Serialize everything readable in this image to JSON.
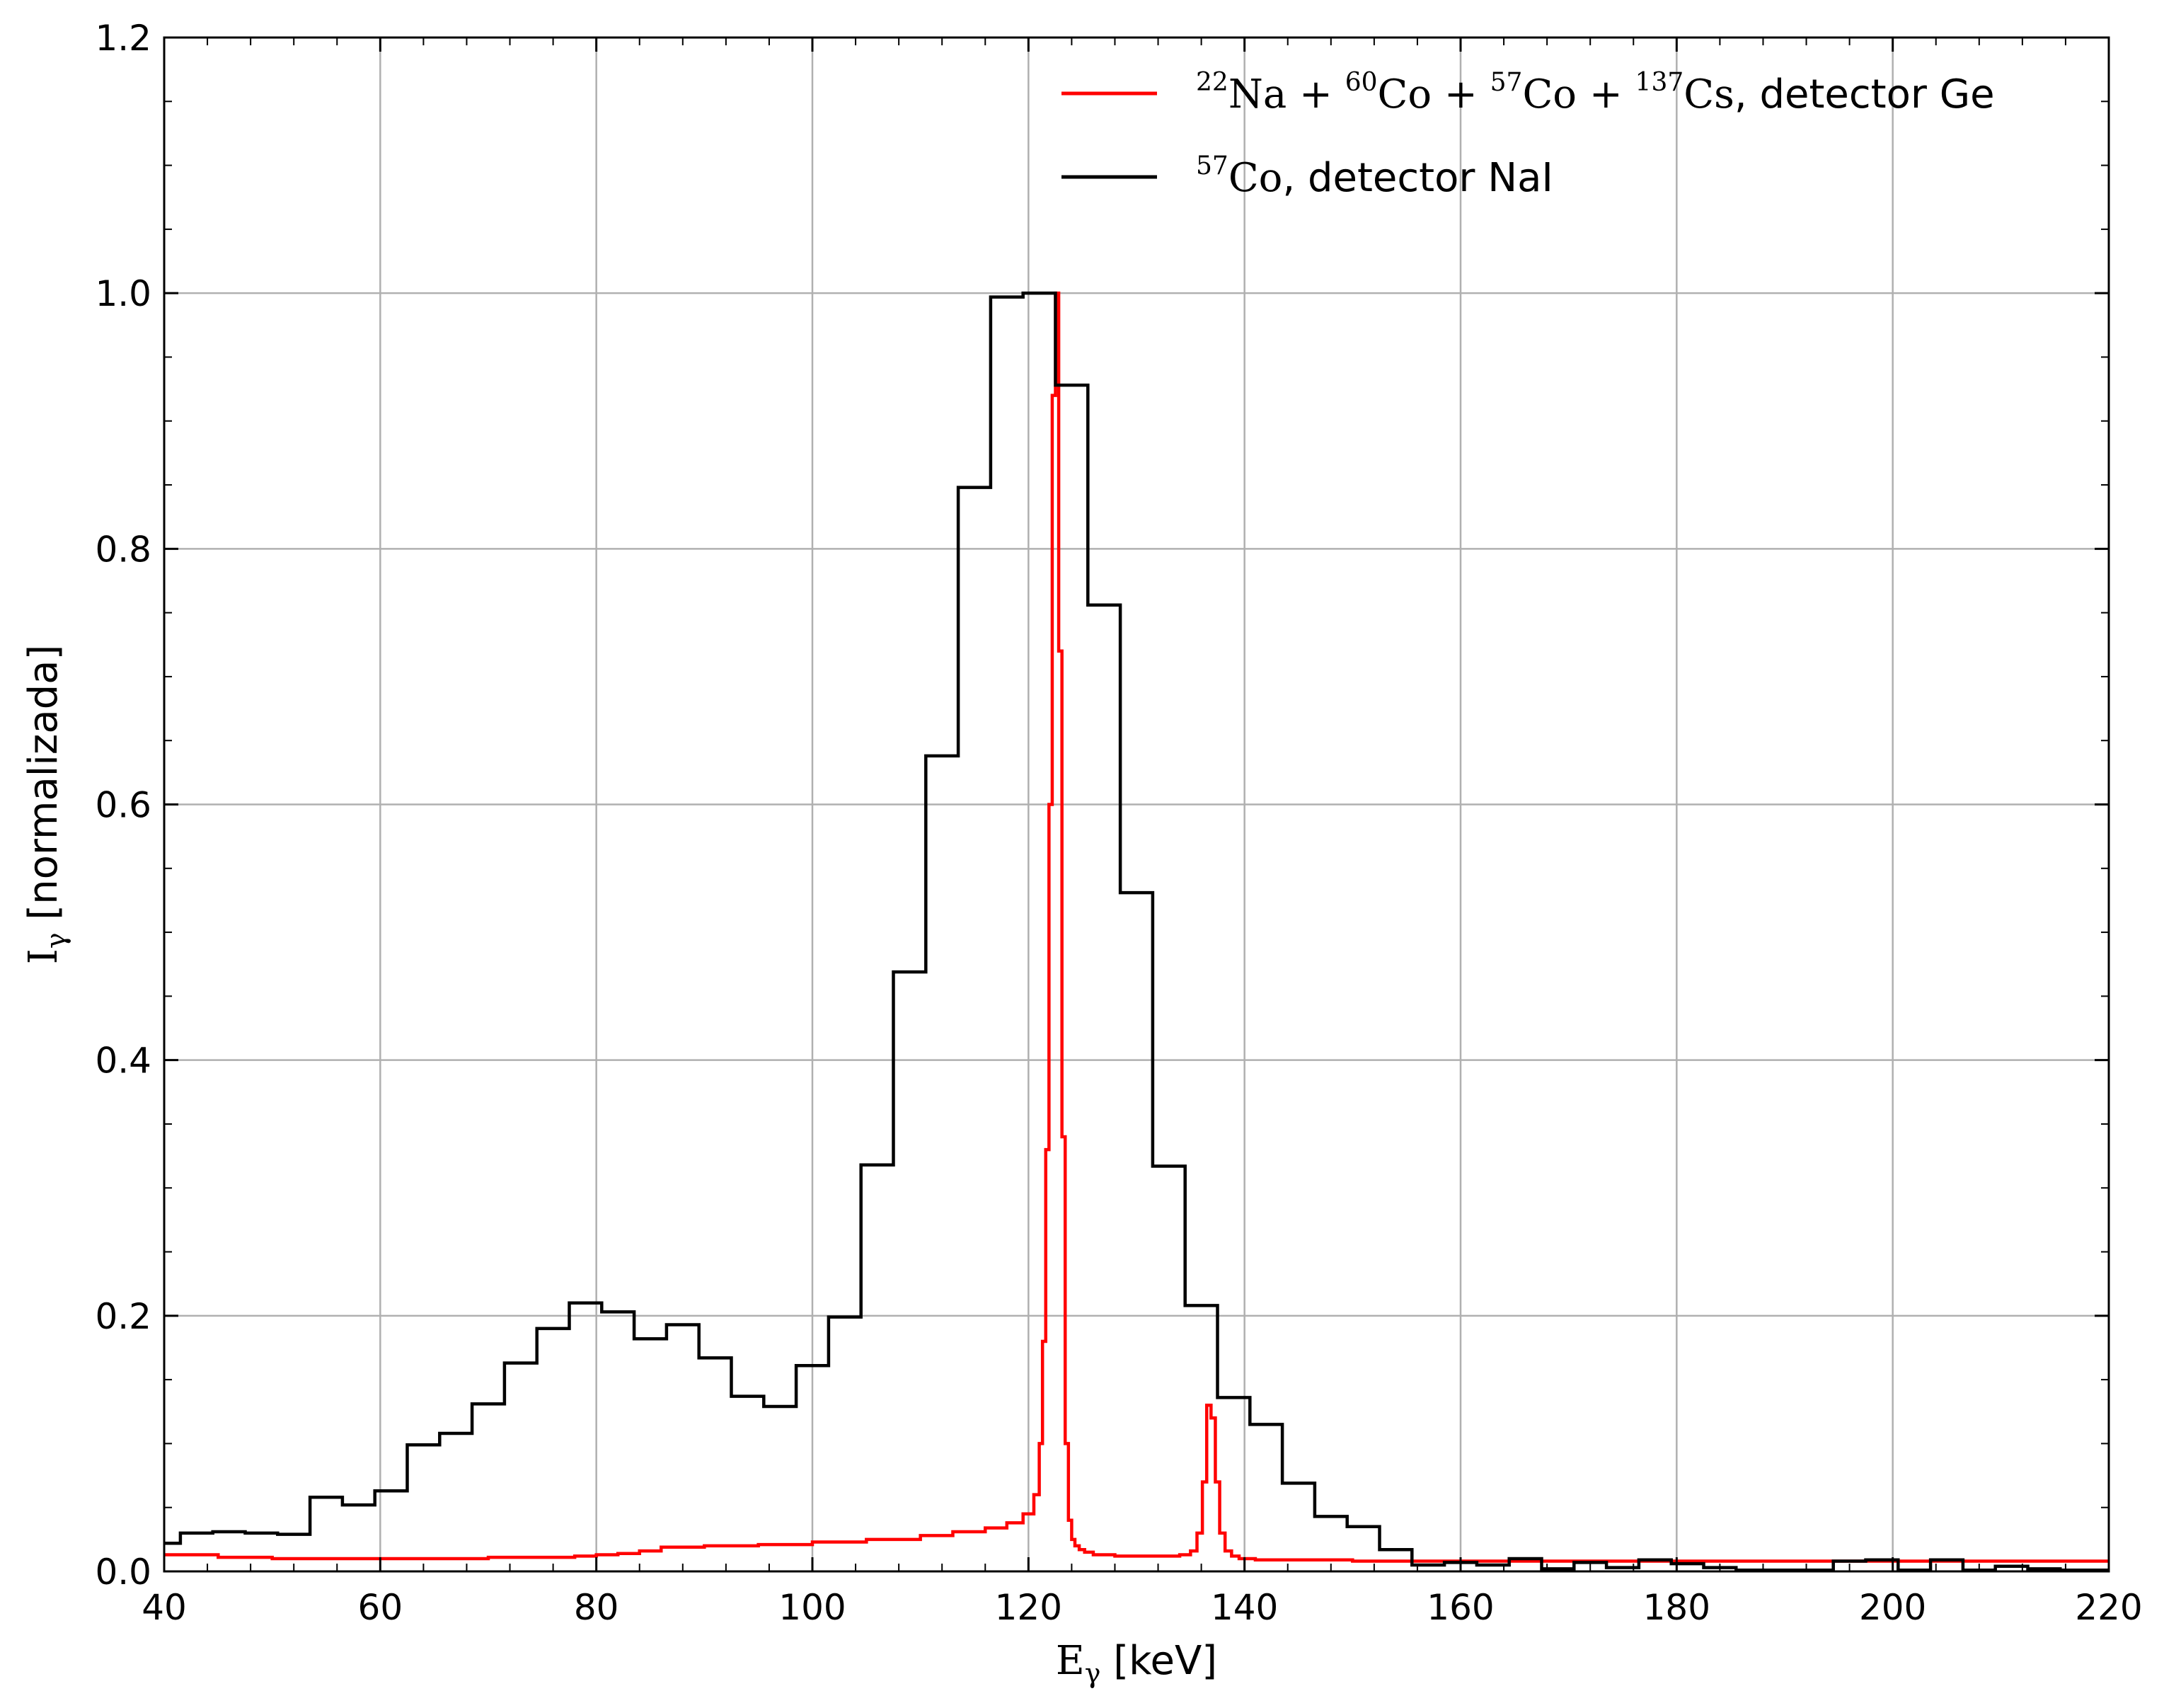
{
  "chart_data": {
    "type": "line",
    "xlabel": "E",
    "xlabel_sub": "γ",
    "xlabel_unit": " [keV]",
    "ylabel": "I",
    "ylabel_sub": "γ",
    "ylabel_unit": " [normalizada]",
    "xlim": [
      40,
      220
    ],
    "ylim": [
      0,
      1.2
    ],
    "xticks": [
      40,
      60,
      80,
      100,
      120,
      140,
      160,
      180,
      200,
      220
    ],
    "xtick_labels": [
      "40",
      "60",
      "80",
      "100",
      "120",
      "140",
      "160",
      "180",
      "200",
      "220"
    ],
    "yticks": [
      0,
      0.2,
      0.4,
      0.6,
      0.8,
      1.0,
      1.2
    ],
    "ytick_labels": [
      "0.0",
      "0.2",
      "0.4",
      "0.6",
      "0.8",
      "1.0",
      "1.2"
    ],
    "grid": true,
    "legend_position": "top-right",
    "series": [
      {
        "key": "ge",
        "name_parts": [
          {
            "sup": "22",
            "text": "Na"
          },
          {
            "text": " + "
          },
          {
            "sup": "60",
            "text": "Co"
          },
          {
            "text": " + "
          },
          {
            "sup": "57",
            "text": "Co"
          },
          {
            "text": " + "
          },
          {
            "sup": "137",
            "text": "Cs"
          }
        ],
        "name_suffix": ", detector Ge",
        "color": "#ff0000",
        "drawstyle": "steps",
        "x": [
          40,
          45,
          50,
          55,
          60,
          65,
          70,
          75,
          78,
          80,
          82,
          84,
          86,
          90,
          95,
          100,
          105,
          110,
          113,
          116,
          118,
          119.5,
          120.5,
          121,
          121.3,
          121.6,
          121.9,
          122.2,
          122.5,
          122.8,
          123.1,
          123.4,
          123.7,
          124.0,
          124.3,
          124.7,
          125.2,
          126,
          128,
          130,
          132,
          134,
          135,
          135.6,
          136.1,
          136.5,
          136.9,
          137.3,
          137.7,
          138.2,
          138.8,
          139.5,
          141,
          145,
          150,
          160,
          170,
          180,
          190,
          200,
          210,
          220
        ],
        "y": [
          0.013,
          0.011,
          0.01,
          0.01,
          0.01,
          0.01,
          0.011,
          0.011,
          0.012,
          0.013,
          0.014,
          0.016,
          0.019,
          0.02,
          0.021,
          0.023,
          0.025,
          0.028,
          0.031,
          0.034,
          0.038,
          0.045,
          0.06,
          0.1,
          0.18,
          0.33,
          0.6,
          0.92,
          1.0,
          0.72,
          0.34,
          0.1,
          0.04,
          0.025,
          0.02,
          0.017,
          0.015,
          0.013,
          0.012,
          0.012,
          0.012,
          0.013,
          0.016,
          0.03,
          0.07,
          0.13,
          0.12,
          0.07,
          0.03,
          0.016,
          0.012,
          0.01,
          0.009,
          0.009,
          0.008,
          0.008,
          0.008,
          0.008,
          0.008,
          0.008,
          0.008,
          0.008
        ]
      },
      {
        "key": "nai",
        "name_parts": [
          {
            "sup": "57",
            "text": "Co"
          }
        ],
        "name_suffix": ", detector NaI",
        "color": "#000000",
        "drawstyle": "steps",
        "edges": [
          40,
          41.5,
          44.5,
          47.5,
          50.5,
          53.5,
          56.5,
          59.5,
          62.5,
          65.5,
          68.5,
          71.5,
          74.5,
          77.5,
          80.5,
          83.5,
          86.5,
          89.5,
          92.5,
          95.5,
          98.5,
          101.5,
          104.5,
          107.5,
          110.5,
          113.5,
          116.5,
          119.5,
          122.5,
          125.5,
          128.5,
          131.5,
          134.5,
          137.5,
          140.5,
          143.5,
          146.5,
          149.5,
          152.5,
          155.5,
          158.5,
          161.5,
          164.5,
          167.5,
          170.5,
          173.5,
          176.5,
          179.5,
          182.5,
          185.5,
          188.5,
          191.5,
          194.5,
          197.5,
          200.5,
          203.5,
          206.5,
          209.5,
          212.5,
          215.5,
          218.5,
          220
        ],
        "values": [
          0.022,
          0.03,
          0.031,
          0.03,
          0.029,
          0.058,
          0.052,
          0.063,
          0.099,
          0.108,
          0.131,
          0.163,
          0.19,
          0.21,
          0.203,
          0.182,
          0.193,
          0.167,
          0.137,
          0.129,
          0.161,
          0.199,
          0.318,
          0.469,
          0.638,
          0.848,
          0.997,
          1.0,
          0.928,
          0.756,
          0.531,
          0.317,
          0.208,
          0.136,
          0.115,
          0.069,
          0.043,
          0.035,
          0.017,
          0.005,
          0.007,
          0.005,
          0.01,
          0.002,
          0.007,
          0.003,
          0.009,
          0.006,
          0.003,
          0.001,
          0.001,
          0.001,
          0.008,
          0.009,
          0.001,
          0.009,
          0.001,
          0.004,
          0.002,
          0.001,
          0.001
        ]
      }
    ]
  }
}
